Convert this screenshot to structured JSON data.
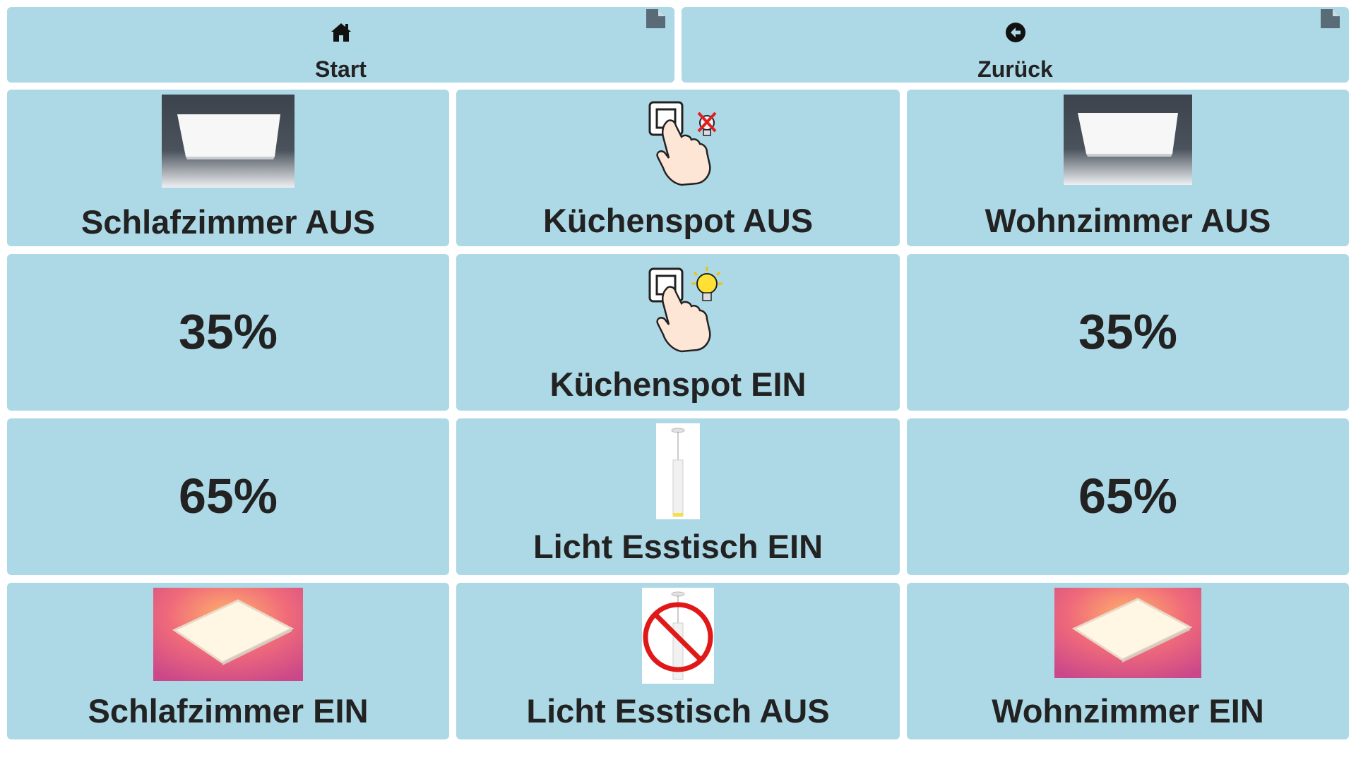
{
  "nav": {
    "start_label": "Start",
    "back_label": "Zurück"
  },
  "tiles": {
    "schlafzimmer_aus": "Schlafzimmer AUS",
    "kuechenspot_aus": "Küchenspot AUS",
    "wohnzimmer_aus": "Wohnzimmer AUS",
    "schlafzimmer_35": "35%",
    "kuechenspot_ein": "Küchenspot EIN",
    "wohnzimmer_35": "35%",
    "schlafzimmer_65": "65%",
    "licht_esstisch_ein": "Licht Esstisch EIN",
    "wohnzimmer_65": "65%",
    "schlafzimmer_ein": "Schlafzimmer EIN",
    "licht_esstisch_aus": "Licht Esstisch AUS",
    "wohnzimmer_ein": "Wohnzimmer EIN"
  },
  "colors": {
    "tile_bg": "#add8e6",
    "text": "#222222",
    "corner": "#5a6b78"
  },
  "icons": {
    "start": "home-icon",
    "back": "arrow-circle-left-icon",
    "corner": "page-corner-icon"
  }
}
